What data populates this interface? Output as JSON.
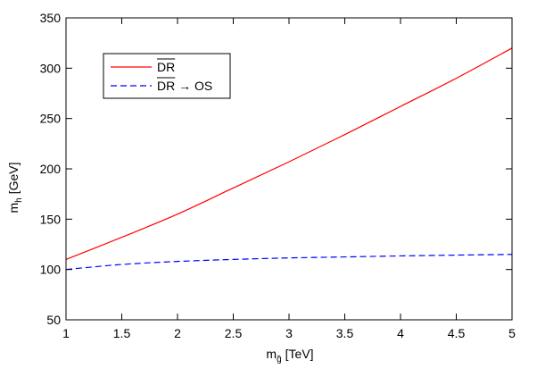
{
  "chart_data": {
    "type": "line",
    "title": "",
    "xlabel": {
      "main": "m",
      "sub": "g̃",
      "unit": "[TeV]"
    },
    "ylabel": {
      "main": "m",
      "sub": "h",
      "unit": "[GeV]"
    },
    "xlim": [
      1,
      5
    ],
    "ylim": [
      50,
      350
    ],
    "xticks": [
      "1",
      "1.5",
      "2",
      "2.5",
      "3",
      "3.5",
      "4",
      "4.5",
      "5"
    ],
    "yticks": [
      "50",
      "100",
      "150",
      "200",
      "250",
      "300",
      "350"
    ],
    "grid": false,
    "legend_position": "top-left",
    "series": [
      {
        "name": "DR",
        "name_overline": "DR",
        "name_suffix": "",
        "color": "#ff0000",
        "dash": "solid",
        "x": [
          1.0,
          1.5,
          2.0,
          2.5,
          3.0,
          3.5,
          4.0,
          4.5,
          5.0
        ],
        "y": [
          110,
          132,
          155,
          181,
          207,
          234,
          262,
          290,
          320
        ]
      },
      {
        "name": "DR → OS",
        "name_overline": "DR",
        "name_suffix": " → OS",
        "color": "#0000ff",
        "dash": "dashed",
        "x": [
          1.0,
          1.5,
          2.0,
          2.5,
          3.0,
          3.5,
          4.0,
          4.5,
          5.0
        ],
        "y": [
          100,
          105,
          108,
          110,
          111.5,
          112.5,
          113.5,
          114.3,
          115
        ]
      }
    ]
  }
}
